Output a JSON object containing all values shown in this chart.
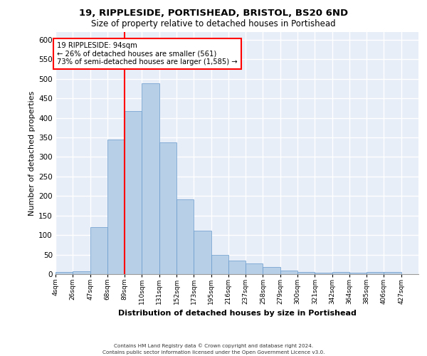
{
  "title1": "19, RIPPLESIDE, PORTISHEAD, BRISTOL, BS20 6ND",
  "title2": "Size of property relative to detached houses in Portishead",
  "xlabel": "Distribution of detached houses by size in Portishead",
  "ylabel": "Number of detached properties",
  "categories": [
    "4sqm",
    "26sqm",
    "47sqm",
    "68sqm",
    "89sqm",
    "110sqm",
    "131sqm",
    "152sqm",
    "173sqm",
    "195sqm",
    "216sqm",
    "237sqm",
    "258sqm",
    "279sqm",
    "300sqm",
    "321sqm",
    "342sqm",
    "364sqm",
    "385sqm",
    "406sqm",
    "427sqm"
  ],
  "values": [
    6,
    7,
    120,
    345,
    418,
    488,
    337,
    192,
    112,
    50,
    35,
    27,
    18,
    10,
    5,
    4,
    5,
    4,
    5,
    5
  ],
  "bar_color": "#b8cfe8",
  "bar_edge_color": "#6699cc",
  "vline_x": 4,
  "vline_color": "red",
  "annotation_text": "19 RIPPLESIDE: 94sqm\n← 26% of detached houses are smaller (561)\n73% of semi-detached houses are larger (1,585) →",
  "ylim": [
    0,
    620
  ],
  "yticks": [
    0,
    50,
    100,
    150,
    200,
    250,
    300,
    350,
    400,
    450,
    500,
    550,
    600
  ],
  "bg_color": "#e8eef8",
  "footer1": "Contains HM Land Registry data © Crown copyright and database right 2024.",
  "footer2": "Contains public sector information licensed under the Open Government Licence v3.0."
}
